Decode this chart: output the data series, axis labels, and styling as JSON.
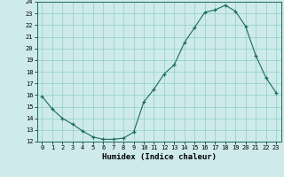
{
  "x": [
    0,
    1,
    2,
    3,
    4,
    5,
    6,
    7,
    8,
    9,
    10,
    11,
    12,
    13,
    14,
    15,
    16,
    17,
    18,
    19,
    20,
    21,
    22,
    23
  ],
  "y": [
    15.9,
    14.8,
    14.0,
    13.5,
    12.9,
    12.4,
    12.2,
    12.2,
    12.3,
    12.8,
    15.4,
    16.5,
    17.8,
    18.6,
    20.5,
    21.8,
    23.1,
    23.3,
    23.7,
    23.2,
    21.9,
    19.4,
    17.5,
    16.2
  ],
  "xlim": [
    -0.5,
    23.5
  ],
  "ylim": [
    12,
    24
  ],
  "yticks": [
    12,
    13,
    14,
    15,
    16,
    17,
    18,
    19,
    20,
    21,
    22,
    23,
    24
  ],
  "xticks": [
    0,
    1,
    2,
    3,
    4,
    5,
    6,
    7,
    8,
    9,
    10,
    11,
    12,
    13,
    14,
    15,
    16,
    17,
    18,
    19,
    20,
    21,
    22,
    23
  ],
  "xlabel": "Humidex (Indice chaleur)",
  "line_color": "#1a6b5a",
  "marker": "+",
  "marker_color": "#1a6b5a",
  "bg_color": "#ceeaea",
  "grid_color": "#8ecece",
  "axis_color": "#1a6b5a"
}
